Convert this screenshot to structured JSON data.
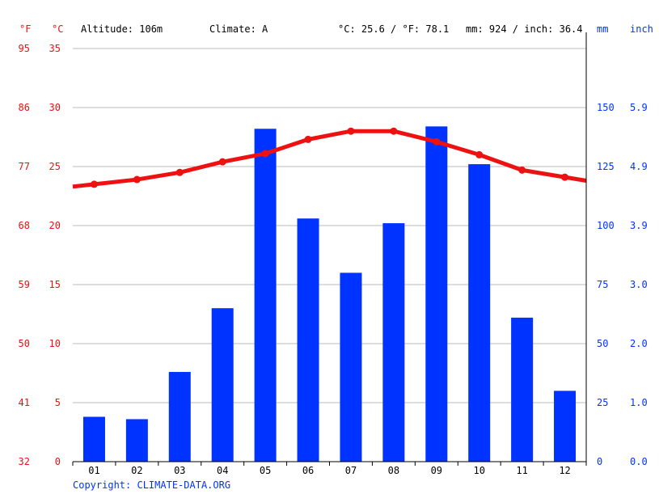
{
  "header": {
    "unit_f": "°F",
    "unit_c": "°C",
    "altitude": "Altitude: 106m",
    "climate": "Climate: A",
    "temp_avg": "°C: 25.6 / °F: 78.1",
    "precip_total": "mm: 924 / inch: 36.4",
    "unit_mm": "mm",
    "unit_inch": "inch"
  },
  "axes": {
    "f_ticks": [
      "95",
      "86",
      "77",
      "68",
      "59",
      "50",
      "41",
      "32"
    ],
    "c_ticks": [
      "35",
      "30",
      "25",
      "20",
      "15",
      "10",
      "5",
      "0"
    ],
    "mm_ticks": [
      "150",
      "125",
      "100",
      "75",
      "50",
      "25",
      "0"
    ],
    "inch_ticks": [
      "5.9",
      "4.9",
      "3.9",
      "3.0",
      "2.0",
      "1.0",
      "0.0"
    ]
  },
  "footer": {
    "copyright": "Copyright: CLIMATE-DATA.ORG"
  },
  "colors": {
    "temperature": "#ee1111",
    "precipitation": "#0033ff",
    "grid": "#bbbbbb",
    "axis": "#000000"
  },
  "chart_data": {
    "type": "bar",
    "categories": [
      "01",
      "02",
      "03",
      "04",
      "05",
      "06",
      "07",
      "08",
      "09",
      "10",
      "11",
      "12"
    ],
    "series": [
      {
        "kind": "bar",
        "axis": "right",
        "values": [
          19,
          18,
          38,
          65,
          141,
          103,
          80,
          101,
          142,
          126,
          61,
          30
        ]
      },
      {
        "kind": "line",
        "axis": "left",
        "values": [
          23.5,
          23.9,
          24.5,
          25.4,
          26.1,
          27.3,
          28.0,
          28.0,
          27.1,
          26.0,
          24.7,
          24.1
        ]
      }
    ],
    "y_left_celsius": {
      "min": 0,
      "max": 35
    },
    "y_right_mm": {
      "min": 0,
      "max": 175
    },
    "grid": true
  }
}
